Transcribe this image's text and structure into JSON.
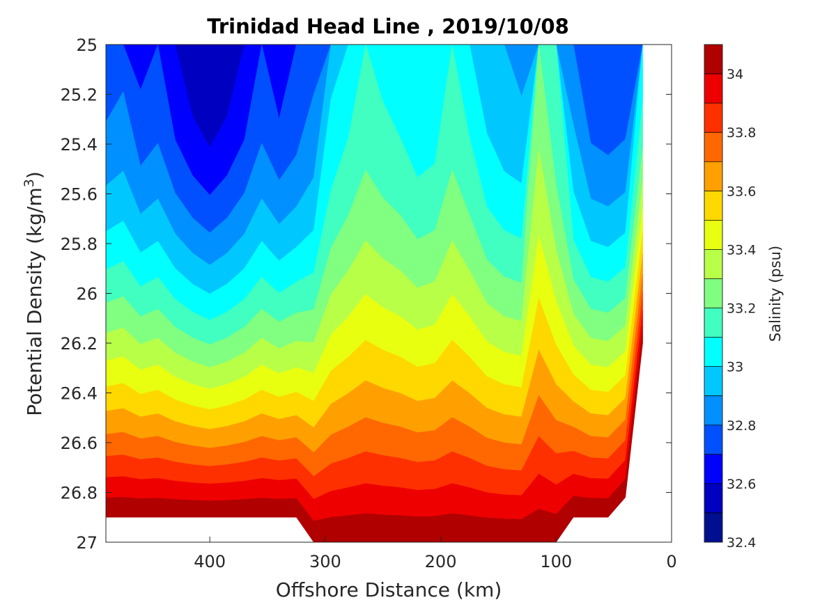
{
  "chart_data": {
    "type": "contourf",
    "title": "Trinidad Head Line , 2019/10/08",
    "xlabel": "Offshore Distance (km)",
    "ylabel_prefix": "Potential Density (kg/m",
    "ylabel_sup": "3",
    "ylabel_suffix": ")",
    "xlim": [
      490,
      0
    ],
    "ylim": [
      27,
      25
    ],
    "x_reversed": true,
    "y_reversed": true,
    "x_ticks": [
      400,
      300,
      200,
      100,
      0
    ],
    "y_ticks": [
      25,
      25.2,
      25.4,
      25.6,
      25.8,
      26,
      26.2,
      26.4,
      26.6,
      26.8,
      27
    ],
    "grid": false,
    "colorbar": {
      "label": "Salinity (psu)",
      "min": 32.4,
      "max": 34.1,
      "step": 0.1,
      "tick_values": [
        32.4,
        32.6,
        32.8,
        33,
        33.2,
        33.4,
        33.6,
        33.8,
        34
      ],
      "colors": [
        "#000f8f",
        "#0000c0",
        "#0000ff",
        "#0050ff",
        "#0090ff",
        "#00c8ff",
        "#00ffff",
        "#40ffc0",
        "#80ff80",
        "#b8ff48",
        "#e8ff10",
        "#ffd800",
        "#ffa000",
        "#ff6800",
        "#ff3000",
        "#ee0000",
        "#b00000"
      ]
    },
    "stations_km": [
      490,
      475,
      460,
      445,
      430,
      415,
      400,
      385,
      370,
      355,
      340,
      325,
      310,
      295,
      280,
      265,
      250,
      235,
      220,
      205,
      190,
      175,
      160,
      145,
      130,
      115,
      100,
      85,
      70,
      55,
      40,
      25
    ],
    "bottom_density": [
      26.9,
      26.9,
      26.9,
      26.9,
      26.9,
      26.9,
      26.9,
      26.9,
      26.9,
      26.9,
      26.9,
      26.9,
      27.0,
      27.0,
      27.0,
      27.0,
      27.0,
      27.0,
      27.0,
      27.0,
      27.0,
      27.0,
      27.0,
      27.0,
      27.0,
      27.0,
      27.0,
      26.9,
      26.9,
      26.9,
      26.82,
      26.2
    ],
    "salinity_levels_top": [
      32.75,
      32.78,
      32.68,
      32.72,
      32.62,
      32.55,
      32.5,
      32.55,
      32.62,
      32.72,
      32.65,
      32.7,
      32.78,
      32.98,
      33.05,
      33.12,
      33.08,
      33.05,
      33.0,
      33.02,
      33.12,
      33.05,
      32.95,
      32.9,
      32.88,
      33.25,
      33.1,
      32.85,
      32.72,
      32.7,
      32.72,
      33.05
    ]
  }
}
